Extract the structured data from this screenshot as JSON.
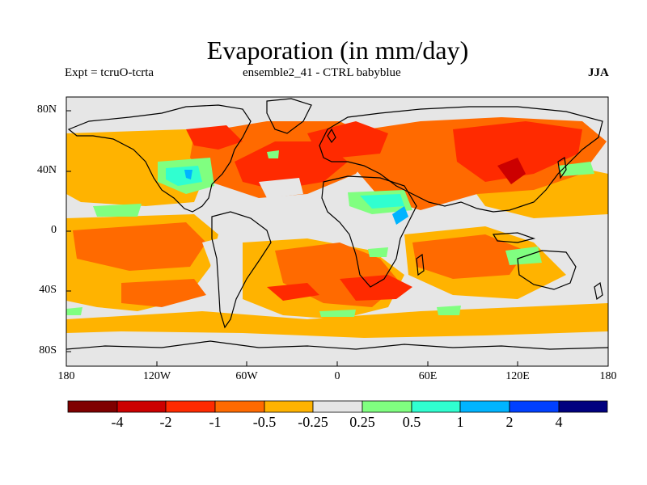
{
  "title": "Evaporation (in mm/day)",
  "subtitle_left": "Expt = tcruO-tcrta",
  "subtitle_center": "ensemble2_41 - CTRL babyblue",
  "subtitle_right": "JJA",
  "map": {
    "projection": "cylindrical-equidistant",
    "lon_range": [
      -180,
      180
    ],
    "lat_range": [
      -90,
      90
    ],
    "background": "#e6e6e6",
    "coastline_color": "#000000",
    "y_ticks": [
      "80N",
      "40N",
      "0",
      "40S",
      "80S"
    ],
    "x_ticks": [
      "180",
      "120W",
      "60W",
      "0",
      "60E",
      "120E",
      "180"
    ]
  },
  "colorbar": {
    "colors": [
      "#7f0000",
      "#cc0000",
      "#ff2a00",
      "#ff6a00",
      "#ffb300",
      "#e6e6e6",
      "#80ff80",
      "#30ffd0",
      "#00b4ff",
      "#0040ff",
      "#00007f"
    ],
    "labels": [
      "-4",
      "-2",
      "-1",
      "-0.5",
      "-0.25",
      "0.25",
      "0.5",
      "1",
      "2",
      "4"
    ]
  }
}
